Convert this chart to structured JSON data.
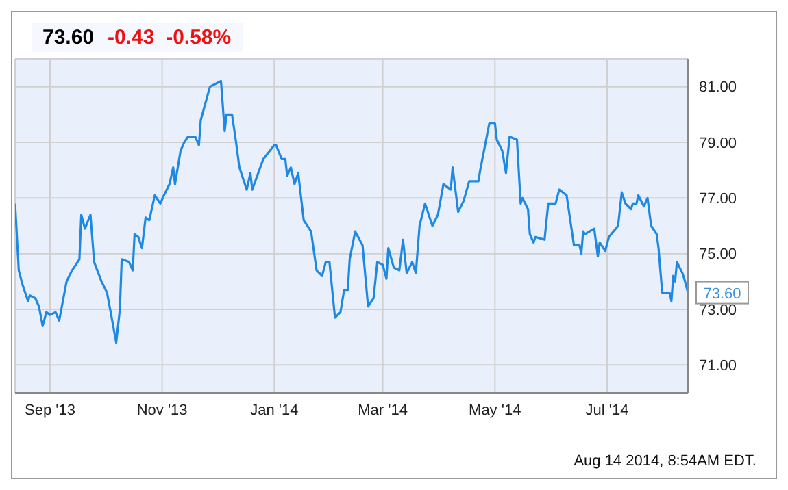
{
  "chart_data": {
    "type": "line",
    "title": "73.60",
    "subtitle": "-0.43  -0.58%",
    "x": [
      "2013-08-13",
      "2013-08-15",
      "2013-08-17",
      "2013-08-20",
      "2013-08-21",
      "2013-08-24",
      "2013-08-26",
      "2013-08-28",
      "2013-08-30",
      "2013-09-01",
      "2013-09-04",
      "2013-09-06",
      "2013-09-10",
      "2013-09-13",
      "2013-09-17",
      "2013-09-18",
      "2013-09-20",
      "2013-09-23",
      "2013-09-25",
      "2013-09-29",
      "2013-10-02",
      "2013-10-04",
      "2013-10-07",
      "2013-10-09",
      "2013-10-10",
      "2013-10-14",
      "2013-10-16",
      "2013-10-17",
      "2013-10-19",
      "2013-10-21",
      "2013-10-23",
      "2013-10-25",
      "2013-10-28",
      "2013-10-31",
      "2013-11-02",
      "2013-11-05",
      "2013-11-07",
      "2013-11-08",
      "2013-11-11",
      "2013-11-13",
      "2013-11-15",
      "2013-11-19",
      "2013-11-21",
      "2013-11-22",
      "2013-11-27",
      "2013-12-03",
      "2013-12-05",
      "2013-12-06",
      "2013-12-09",
      "2013-12-11",
      "2013-12-13",
      "2013-12-17",
      "2013-12-19",
      "2013-12-20",
      "2013-12-26",
      "2014-01-01",
      "2014-01-02",
      "2014-01-05",
      "2014-01-07",
      "2014-01-08",
      "2014-01-10",
      "2014-01-12",
      "2014-01-14",
      "2014-01-17",
      "2014-01-21",
      "2014-01-24",
      "2014-01-27",
      "2014-01-29",
      "2014-01-31",
      "2014-02-03",
      "2014-02-06",
      "2014-02-08",
      "2014-02-10",
      "2014-02-11",
      "2014-02-14",
      "2014-02-18",
      "2014-02-21",
      "2014-02-24",
      "2014-02-26",
      "2014-03-01",
      "2014-03-03",
      "2014-03-04",
      "2014-03-07",
      "2014-03-10",
      "2014-03-12",
      "2014-03-14",
      "2014-03-17",
      "2014-03-19",
      "2014-03-21",
      "2014-03-24",
      "2014-03-28",
      "2014-03-31",
      "2014-04-03",
      "2014-04-07",
      "2014-04-08",
      "2014-04-11",
      "2014-04-14",
      "2014-04-17",
      "2014-04-22",
      "2014-04-23",
      "2014-04-28",
      "2014-05-01",
      "2014-05-02",
      "2014-05-05",
      "2014-05-07",
      "2014-05-09",
      "2014-05-13",
      "2014-05-15",
      "2014-05-16",
      "2014-05-19",
      "2014-05-20",
      "2014-05-22",
      "2014-05-23",
      "2014-05-28",
      "2014-05-30",
      "2014-06-03",
      "2014-06-05",
      "2014-06-09",
      "2014-06-13",
      "2014-06-16",
      "2014-06-17",
      "2014-06-18",
      "2014-06-19",
      "2014-06-24",
      "2014-06-26",
      "2014-06-27",
      "2014-06-30",
      "2014-07-02",
      "2014-07-07",
      "2014-07-09",
      "2014-07-11",
      "2014-07-14",
      "2014-07-15",
      "2014-07-17",
      "2014-07-18",
      "2014-07-21",
      "2014-07-23",
      "2014-07-25",
      "2014-07-28",
      "2014-07-29",
      "2014-07-31",
      "2014-08-04",
      "2014-08-05",
      "2014-08-06",
      "2014-08-07",
      "2014-08-08",
      "2014-08-11",
      "2014-08-12",
      "2014-08-14"
    ],
    "series": [
      {
        "color": "#1e88e5",
        "values": [
          76.8,
          74.4,
          73.9,
          73.3,
          73.5,
          73.4,
          73.1,
          72.4,
          72.9,
          72.8,
          72.9,
          72.6,
          74.0,
          74.4,
          74.8,
          76.4,
          75.9,
          76.4,
          74.7,
          74.0,
          73.6,
          72.9,
          71.8,
          73.0,
          74.8,
          74.7,
          74.4,
          75.7,
          75.6,
          75.2,
          76.3,
          76.2,
          77.1,
          76.8,
          77.1,
          77.5,
          78.1,
          77.5,
          78.7,
          79.0,
          79.2,
          79.2,
          78.9,
          79.8,
          81.0,
          81.2,
          79.4,
          80.0,
          80.0,
          79.1,
          78.1,
          77.3,
          77.9,
          77.3,
          78.4,
          78.9,
          78.9,
          78.4,
          78.4,
          77.8,
          78.1,
          77.5,
          77.9,
          76.2,
          75.8,
          74.4,
          74.2,
          74.7,
          74.7,
          72.7,
          72.9,
          73.7,
          73.7,
          74.8,
          75.8,
          75.3,
          73.1,
          73.4,
          74.7,
          74.6,
          74.1,
          75.2,
          74.5,
          74.4,
          75.5,
          74.3,
          74.7,
          74.3,
          76.0,
          76.8,
          76.0,
          76.4,
          77.5,
          77.3,
          78.1,
          76.5,
          76.9,
          77.6,
          77.6,
          78.0,
          79.7,
          79.7,
          79.1,
          78.7,
          77.9,
          79.2,
          79.1,
          76.8,
          77.0,
          76.6,
          75.7,
          75.4,
          75.6,
          75.5,
          76.8,
          76.8,
          77.3,
          77.1,
          75.3,
          75.3,
          75.0,
          75.8,
          75.7,
          75.9,
          74.9,
          75.4,
          75.1,
          75.6,
          76.0,
          77.2,
          76.8,
          76.6,
          76.8,
          76.8,
          77.1,
          76.7,
          77.0,
          76.0,
          75.7,
          75.2,
          73.6,
          73.6,
          73.3,
          74.2,
          74.0,
          74.7,
          74.3,
          74.1,
          73.6
        ]
      }
    ],
    "xlim": [
      "2013-08-13",
      "2014-08-14"
    ],
    "xticks": [
      {
        "value": "2013-09-01",
        "label": "Sep '13"
      },
      {
        "value": "2013-11-01",
        "label": "Nov '13"
      },
      {
        "value": "2014-01-01",
        "label": "Jan '14"
      },
      {
        "value": "2014-03-01",
        "label": "Mar '14"
      },
      {
        "value": "2014-05-01",
        "label": "May '14"
      },
      {
        "value": "2014-07-01",
        "label": "Jul '14"
      }
    ],
    "ylim": [
      70,
      82
    ],
    "yticks": [
      {
        "value": 71,
        "label": "71.00"
      },
      {
        "value": 73,
        "label": "73.00"
      },
      {
        "value": 75,
        "label": "75.00"
      },
      {
        "value": 77,
        "label": "77.00"
      },
      {
        "value": 79,
        "label": "79.00"
      },
      {
        "value": 81,
        "label": "81.00"
      }
    ],
    "grid": true,
    "legend": false,
    "marker": "none",
    "line_style": "solid",
    "annotations": [
      {
        "text": "73.60",
        "x": "2014-08-14",
        "y": 73.6
      },
      "Aug 14 2014, 8:54AM EDT."
    ]
  }
}
